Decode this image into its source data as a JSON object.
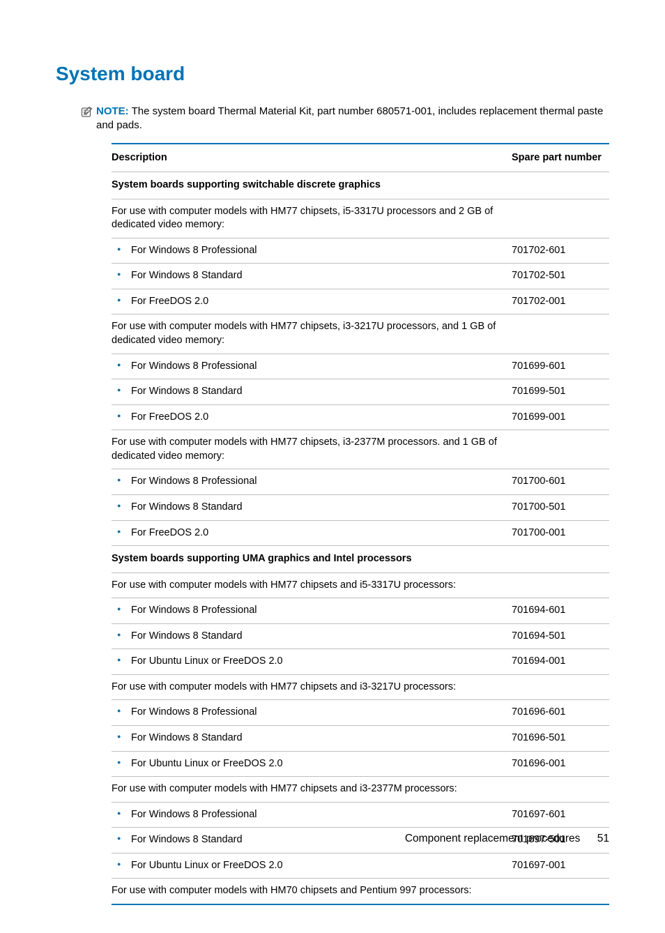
{
  "heading": "System board",
  "note": {
    "label": "NOTE:",
    "text": "The system board Thermal Material Kit, part number 680571-001, includes replacement thermal paste and pads."
  },
  "table": {
    "header": {
      "desc": "Description",
      "part": "Spare part number"
    },
    "rows": [
      {
        "type": "section",
        "desc": "System boards supporting switchable discrete graphics"
      },
      {
        "type": "text",
        "desc": "For use with computer models with HM77 chipsets, i5-3317U processors and 2 GB of dedicated video memory:"
      },
      {
        "type": "bullet",
        "desc": "For Windows 8 Professional",
        "part": "701702-601"
      },
      {
        "type": "bullet",
        "desc": "For Windows 8 Standard",
        "part": "701702-501"
      },
      {
        "type": "bullet",
        "desc": "For FreeDOS 2.0",
        "part": "701702-001"
      },
      {
        "type": "text",
        "desc": "For use with computer models with HM77 chipsets, i3-3217U processors, and 1 GB of dedicated video memory:"
      },
      {
        "type": "bullet",
        "desc": "For Windows 8 Professional",
        "part": "701699-601"
      },
      {
        "type": "bullet",
        "desc": "For Windows 8 Standard",
        "part": "701699-501"
      },
      {
        "type": "bullet",
        "desc": "For FreeDOS 2.0",
        "part": "701699-001"
      },
      {
        "type": "text",
        "desc": "For use with computer models with HM77 chipsets, i3-2377M processors. and 1 GB of dedicated video memory:"
      },
      {
        "type": "bullet",
        "desc": "For Windows 8 Professional",
        "part": "701700-601"
      },
      {
        "type": "bullet",
        "desc": "For Windows 8 Standard",
        "part": "701700-501"
      },
      {
        "type": "bullet",
        "desc": "For FreeDOS 2.0",
        "part": "701700-001"
      },
      {
        "type": "section",
        "desc": "System boards supporting UMA graphics and Intel processors"
      },
      {
        "type": "text",
        "desc": "For use with computer models with HM77 chipsets and i5-3317U processors:"
      },
      {
        "type": "bullet",
        "desc": "For Windows 8 Professional",
        "part": "701694-601"
      },
      {
        "type": "bullet",
        "desc": "For Windows 8 Standard",
        "part": "701694-501"
      },
      {
        "type": "bullet",
        "desc": "For Ubuntu Linux or FreeDOS 2.0",
        "part": "701694-001"
      },
      {
        "type": "text",
        "desc": "For use with computer models with HM77 chipsets and i3-3217U processors:"
      },
      {
        "type": "bullet",
        "desc": "For Windows 8 Professional",
        "part": "701696-601"
      },
      {
        "type": "bullet",
        "desc": "For Windows 8 Standard",
        "part": "701696-501"
      },
      {
        "type": "bullet",
        "desc": "For Ubuntu Linux or FreeDOS 2.0",
        "part": "701696-001"
      },
      {
        "type": "text",
        "desc": "For use with computer models with HM77 chipsets and i3-2377M processors:"
      },
      {
        "type": "bullet",
        "desc": "For Windows 8 Professional",
        "part": "701697-601"
      },
      {
        "type": "bullet",
        "desc": "For Windows 8 Standard",
        "part": "701697-501"
      },
      {
        "type": "bullet",
        "desc": "For Ubuntu Linux or FreeDOS 2.0",
        "part": "701697-001"
      },
      {
        "type": "text",
        "desc": "For use with computer models with HM70 chipsets and Pentium 997 processors:",
        "last": true
      }
    ]
  },
  "footer": {
    "text": "Component replacement procedures",
    "page": "51"
  }
}
